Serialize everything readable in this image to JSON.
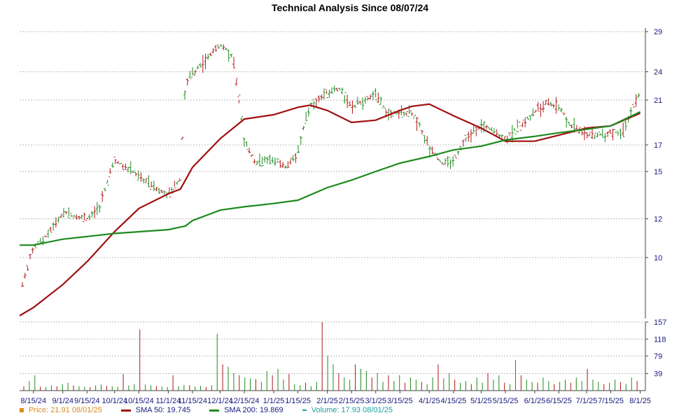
{
  "chart_data": [
    {
      "type": "ohlc",
      "title": "Technical Analysis Since 08/07/24",
      "y_ticks": [
        10,
        12,
        15,
        17,
        21,
        24,
        29
      ],
      "ylim": [
        7.5,
        29.5
      ],
      "x_ticks": [
        "8/15/24",
        "9/1/24",
        "9/15/24",
        "10/1/24",
        "10/15/24",
        "11/1/24",
        "11/15/24",
        "12/1/24",
        "12/15/24",
        "1/1/25",
        "1/15/25",
        "2/1/25",
        "2/15/25",
        "3/1/25",
        "3/15/25",
        "4/1/25",
        "4/15/25",
        "5/1/25",
        "5/15/25",
        "6/1/25",
        "6/15/25",
        "7/1/25",
        "7/15/25",
        "8/1/25"
      ],
      "grid": true,
      "series": [
        {
          "name": "Price",
          "color": "#d98c1f",
          "points": [
            {
              "x": "8/7/24",
              "y": 8.3
            },
            {
              "x": "8/15/24",
              "y": 10.5
            },
            {
              "x": "8/22/24",
              "y": 11.0
            },
            {
              "x": "9/1/24",
              "y": 12.3
            },
            {
              "x": "9/8/24",
              "y": 12.2
            },
            {
              "x": "9/15/24",
              "y": 12.0
            },
            {
              "x": "9/22/24",
              "y": 12.6
            },
            {
              "x": "10/1/24",
              "y": 15.8
            },
            {
              "x": "10/8/24",
              "y": 15.3
            },
            {
              "x": "10/15/24",
              "y": 14.6
            },
            {
              "x": "10/22/24",
              "y": 14.1
            },
            {
              "x": "11/1/24",
              "y": 13.4
            },
            {
              "x": "11/8/24",
              "y": 14.5
            },
            {
              "x": "11/11/24",
              "y": 22.8
            },
            {
              "x": "11/15/24",
              "y": 23.8
            },
            {
              "x": "11/22/24",
              "y": 25.2
            },
            {
              "x": "12/1/24",
              "y": 27.4
            },
            {
              "x": "12/8/24",
              "y": 25.8
            },
            {
              "x": "12/15/24",
              "y": 17.2
            },
            {
              "x": "12/22/24",
              "y": 15.6
            },
            {
              "x": "1/1/25",
              "y": 15.9
            },
            {
              "x": "1/8/25",
              "y": 15.3
            },
            {
              "x": "1/15/25",
              "y": 16.5
            },
            {
              "x": "1/22/25",
              "y": 20.5
            },
            {
              "x": "2/1/25",
              "y": 21.8
            },
            {
              "x": "2/8/25",
              "y": 22.2
            },
            {
              "x": "2/15/25",
              "y": 20.3
            },
            {
              "x": "3/1/25",
              "y": 21.5
            },
            {
              "x": "3/8/25",
              "y": 19.8
            },
            {
              "x": "3/15/25",
              "y": 19.6
            },
            {
              "x": "3/22/25",
              "y": 19.8
            },
            {
              "x": "4/1/25",
              "y": 16.8
            },
            {
              "x": "4/8/25",
              "y": 15.6
            },
            {
              "x": "4/15/25",
              "y": 15.8
            },
            {
              "x": "4/22/25",
              "y": 17.5
            },
            {
              "x": "5/1/25",
              "y": 18.6
            },
            {
              "x": "5/8/25",
              "y": 18.2
            },
            {
              "x": "5/15/25",
              "y": 17.5
            },
            {
              "x": "5/22/25",
              "y": 18.4
            },
            {
              "x": "6/1/25",
              "y": 19.8
            },
            {
              "x": "6/8/25",
              "y": 20.8
            },
            {
              "x": "6/15/25",
              "y": 20.3
            },
            {
              "x": "6/22/25",
              "y": 18.6
            },
            {
              "x": "7/1/25",
              "y": 17.9
            },
            {
              "x": "7/8/25",
              "y": 17.8
            },
            {
              "x": "7/15/25",
              "y": 18.1
            },
            {
              "x": "7/22/25",
              "y": 18.0
            },
            {
              "x": "8/1/25",
              "y": 21.91
            }
          ]
        },
        {
          "name": "SMA 50",
          "color": "#a01010",
          "points": [
            {
              "x": "8/7/24",
              "y": 7.6
            },
            {
              "x": "8/15/24",
              "y": 7.9
            },
            {
              "x": "9/1/24",
              "y": 8.8
            },
            {
              "x": "9/15/24",
              "y": 9.8
            },
            {
              "x": "10/1/24",
              "y": 11.3
            },
            {
              "x": "10/15/24",
              "y": 12.6
            },
            {
              "x": "11/1/24",
              "y": 13.5
            },
            {
              "x": "11/8/24",
              "y": 13.8
            },
            {
              "x": "11/15/24",
              "y": 15.3
            },
            {
              "x": "12/1/24",
              "y": 17.5
            },
            {
              "x": "12/15/24",
              "y": 19.2
            },
            {
              "x": "1/1/25",
              "y": 19.6
            },
            {
              "x": "1/15/25",
              "y": 20.3
            },
            {
              "x": "1/22/25",
              "y": 20.5
            },
            {
              "x": "2/1/25",
              "y": 20.0
            },
            {
              "x": "2/15/25",
              "y": 18.9
            },
            {
              "x": "3/1/25",
              "y": 19.1
            },
            {
              "x": "3/15/25",
              "y": 20.0
            },
            {
              "x": "3/22/25",
              "y": 20.4
            },
            {
              "x": "4/1/25",
              "y": 20.6
            },
            {
              "x": "4/15/25",
              "y": 19.5
            },
            {
              "x": "5/1/25",
              "y": 18.4
            },
            {
              "x": "5/15/25",
              "y": 17.3
            },
            {
              "x": "6/1/25",
              "y": 17.3
            },
            {
              "x": "6/15/25",
              "y": 17.8
            },
            {
              "x": "7/1/25",
              "y": 18.4
            },
            {
              "x": "7/15/25",
              "y": 18.6
            },
            {
              "x": "8/1/25",
              "y": 19.745
            }
          ]
        },
        {
          "name": "SMA 200",
          "color": "#1e8a1e",
          "points": [
            {
              "x": "8/7/24",
              "y": 10.6
            },
            {
              "x": "8/15/24",
              "y": 10.6
            },
            {
              "x": "9/1/24",
              "y": 10.9
            },
            {
              "x": "10/1/24",
              "y": 11.2
            },
            {
              "x": "11/1/24",
              "y": 11.4
            },
            {
              "x": "11/11/24",
              "y": 11.6
            },
            {
              "x": "11/15/24",
              "y": 11.9
            },
            {
              "x": "12/1/24",
              "y": 12.5
            },
            {
              "x": "12/15/24",
              "y": 12.7
            },
            {
              "x": "1/1/25",
              "y": 12.9
            },
            {
              "x": "1/15/25",
              "y": 13.1
            },
            {
              "x": "2/1/25",
              "y": 13.9
            },
            {
              "x": "2/15/25",
              "y": 14.4
            },
            {
              "x": "3/1/25",
              "y": 15.0
            },
            {
              "x": "3/15/25",
              "y": 15.6
            },
            {
              "x": "4/1/25",
              "y": 16.1
            },
            {
              "x": "4/15/25",
              "y": 16.6
            },
            {
              "x": "5/1/25",
              "y": 16.9
            },
            {
              "x": "5/15/25",
              "y": 17.4
            },
            {
              "x": "6/1/25",
              "y": 17.7
            },
            {
              "x": "6/15/25",
              "y": 18.0
            },
            {
              "x": "7/1/25",
              "y": 18.3
            },
            {
              "x": "7/15/25",
              "y": 18.6
            },
            {
              "x": "8/1/25",
              "y": 19.869
            }
          ]
        }
      ]
    },
    {
      "type": "bar",
      "y_ticks": [
        39,
        79,
        118,
        157
      ],
      "ylim": [
        0,
        157
      ],
      "series": [
        {
          "name": "Volume",
          "color": "#1aa0a0",
          "values": [
            10,
            22,
            35,
            9,
            8,
            12,
            10,
            15,
            18,
            12,
            10,
            9,
            8,
            12,
            14,
            11,
            10,
            9,
            38,
            12,
            15,
            140,
            14,
            12,
            10,
            9,
            8,
            35,
            10,
            13,
            12,
            9,
            11,
            8,
            12,
            130,
            60,
            55,
            40,
            35,
            30,
            28,
            26,
            20,
            45,
            35,
            50,
            25,
            38,
            15,
            12,
            18,
            10,
            20,
            157,
            80,
            60,
            40,
            30,
            25,
            60,
            50,
            45,
            30,
            40,
            20,
            35,
            22,
            35,
            18,
            30,
            25,
            20,
            15,
            30,
            60,
            28,
            40,
            25,
            18,
            22,
            15,
            30,
            18,
            40,
            25,
            35,
            18,
            15,
            70,
            35,
            25,
            20,
            18,
            30,
            22,
            15,
            20,
            25,
            18,
            30,
            22,
            50,
            25,
            20,
            15,
            18,
            25,
            20,
            15,
            30,
            22
          ]
        }
      ]
    }
  ],
  "legend": {
    "price": {
      "label": "Price: 21.91",
      "date": "08/01/25"
    },
    "sma50": {
      "label": "SMA 50: 19.745"
    },
    "sma200": {
      "label": "SMA 200: 19.869"
    },
    "volume": {
      "label": "Volume: 17.93",
      "date": "08/01/25"
    }
  }
}
